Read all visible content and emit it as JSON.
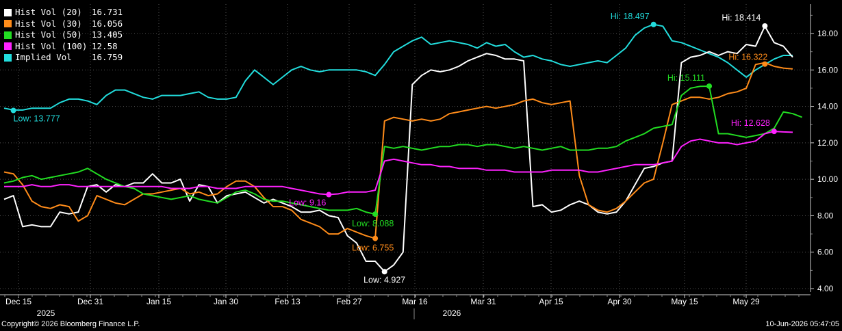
{
  "legend": [
    {
      "name": "Hist Vol (20)",
      "value": "16.731",
      "color": "#ffffff"
    },
    {
      "name": "Hist Vol (30)",
      "value": "16.056",
      "color": "#ff8c1a"
    },
    {
      "name": "Hist Vol (50)",
      "value": "13.405",
      "color": "#22dd22"
    },
    {
      "name": "Hist Vol (100)",
      "value": "12.58",
      "color": "#ff22ff"
    },
    {
      "name": "Implied Vol",
      "value": "16.759",
      "color": "#22dddd"
    }
  ],
  "footer": {
    "copyright": "Copyright© 2026 Bloomberg Finance L.P.",
    "timestamp": "10-Jun-2026 05:47:05"
  },
  "chart_data": {
    "type": "line",
    "ylim": [
      4,
      19
    ],
    "yticks": [
      "4.00",
      "6.00",
      "8.00",
      "10.00",
      "12.00",
      "14.00",
      "16.00",
      "18.00"
    ],
    "x_ticks": [
      "Dec 15",
      "Dec 31",
      "Jan 15",
      "Jan 30",
      "Feb 13",
      "Feb 27",
      "Mar 16",
      "Mar 31",
      "Apr 15",
      "Apr 30",
      "May 15",
      "May 29"
    ],
    "year_labels": [
      "2025",
      "2026"
    ],
    "series": [
      {
        "name": "Implied Vol",
        "color": "#22dddd",
        "values": [
          13.9,
          13.8,
          13.8,
          13.9,
          13.9,
          13.9,
          14.2,
          14.4,
          14.4,
          14.3,
          14.1,
          14.6,
          14.9,
          14.9,
          14.7,
          14.5,
          14.4,
          14.6,
          14.6,
          14.6,
          14.7,
          14.8,
          14.5,
          14.4,
          14.4,
          14.5,
          15.4,
          16.0,
          15.6,
          15.2,
          15.6,
          16.0,
          16.2,
          16.0,
          15.9,
          16.0,
          16.0,
          16.0,
          16.0,
          15.9,
          15.7,
          16.3,
          17.0,
          17.3,
          17.6,
          17.8,
          17.4,
          17.5,
          17.6,
          17.5,
          17.4,
          17.2,
          17.5,
          17.3,
          17.4,
          17.0,
          16.7,
          16.8,
          16.6,
          16.5,
          16.3,
          16.2,
          16.3,
          16.4,
          16.5,
          16.4,
          16.8,
          17.2,
          17.9,
          18.3,
          18.5,
          18.4,
          17.6,
          17.5,
          17.3,
          17.1,
          16.9,
          16.7,
          16.4,
          16.0,
          15.6,
          16.0,
          16.3,
          16.6,
          16.8,
          16.8
        ]
      },
      {
        "name": "Hist Vol (20)",
        "color": "#ffffff",
        "values": [
          8.9,
          9.1,
          7.4,
          7.5,
          7.4,
          7.4,
          8.2,
          8.1,
          8.2,
          9.6,
          9.7,
          9.3,
          9.7,
          9.6,
          9.8,
          9.8,
          10.3,
          9.8,
          9.8,
          10.0,
          8.8,
          9.7,
          9.6,
          8.7,
          9.1,
          9.2,
          9.3,
          9.0,
          8.7,
          8.9,
          8.7,
          8.5,
          8.2,
          8.2,
          8.3,
          8.0,
          7.9,
          6.9,
          6.5,
          5.5,
          5.5,
          4.93,
          5.3,
          6.0,
          15.2,
          15.7,
          16.0,
          15.9,
          16.0,
          16.2,
          16.5,
          16.7,
          16.9,
          16.8,
          16.6,
          16.6,
          16.5,
          8.5,
          8.6,
          8.2,
          8.3,
          8.6,
          8.8,
          8.6,
          8.2,
          8.1,
          8.2,
          8.8,
          9.7,
          10.6,
          10.7,
          10.9,
          11.0,
          16.4,
          16.7,
          16.8,
          17.0,
          16.8,
          17.0,
          16.9,
          17.4,
          17.3,
          18.4,
          17.5,
          17.3,
          16.7
        ]
      },
      {
        "name": "Hist Vol (30)",
        "color": "#ff8c1a",
        "values": [
          10.4,
          10.3,
          9.7,
          8.8,
          8.5,
          8.4,
          8.6,
          8.5,
          7.7,
          8.0,
          9.1,
          8.9,
          8.7,
          8.6,
          8.9,
          9.2,
          9.2,
          9.3,
          9.4,
          9.5,
          9.2,
          9.3,
          9.1,
          9.2,
          9.6,
          9.9,
          9.9,
          9.6,
          9.0,
          8.5,
          8.5,
          8.3,
          7.8,
          7.6,
          7.4,
          7.0,
          7.0,
          7.3,
          7.1,
          6.9,
          6.755,
          13.2,
          13.4,
          13.3,
          13.2,
          13.3,
          13.2,
          13.3,
          13.6,
          13.7,
          13.8,
          13.9,
          14.0,
          13.9,
          14.0,
          14.1,
          14.3,
          14.4,
          14.2,
          14.1,
          14.2,
          14.3,
          10.2,
          8.6,
          8.3,
          8.2,
          8.4,
          8.8,
          9.3,
          9.8,
          10.0,
          12.0,
          14.1,
          14.3,
          14.5,
          14.5,
          14.4,
          14.5,
          14.7,
          14.8,
          15.0,
          16.3,
          16.4,
          16.2,
          16.1,
          16.056
        ]
      },
      {
        "name": "Hist Vol (50)",
        "color": "#22dd22",
        "values": [
          9.8,
          9.9,
          10.1,
          10.2,
          10.0,
          10.1,
          10.2,
          10.3,
          10.4,
          10.6,
          10.3,
          10.0,
          9.8,
          9.6,
          9.5,
          9.2,
          9.1,
          9.0,
          8.9,
          9.0,
          9.1,
          8.9,
          8.8,
          8.7,
          9.0,
          9.3,
          9.4,
          9.2,
          8.9,
          8.8,
          8.8,
          8.7,
          8.6,
          8.5,
          8.4,
          8.3,
          8.3,
          8.3,
          8.4,
          8.2,
          8.088,
          11.8,
          11.7,
          11.8,
          11.7,
          11.6,
          11.7,
          11.8,
          11.8,
          11.9,
          11.9,
          11.8,
          11.9,
          11.9,
          11.8,
          11.7,
          11.8,
          11.7,
          11.6,
          11.7,
          11.8,
          11.6,
          11.6,
          11.6,
          11.7,
          11.7,
          11.8,
          12.1,
          12.3,
          12.5,
          12.8,
          12.9,
          13.0,
          14.6,
          15.0,
          15.1,
          15.111,
          12.5,
          12.5,
          12.4,
          12.3,
          12.4,
          12.5,
          12.8,
          13.7,
          13.6,
          13.405
        ]
      },
      {
        "name": "Hist Vol (100)",
        "color": "#ff22ff",
        "values": [
          9.6,
          9.6,
          9.6,
          9.7,
          9.6,
          9.6,
          9.7,
          9.7,
          9.6,
          9.6,
          9.6,
          9.6,
          9.6,
          9.6,
          9.6,
          9.6,
          9.6,
          9.6,
          9.5,
          9.5,
          9.5,
          9.6,
          9.6,
          9.5,
          9.5,
          9.5,
          9.6,
          9.6,
          9.6,
          9.6,
          9.6,
          9.5,
          9.4,
          9.3,
          9.2,
          9.16,
          9.2,
          9.3,
          9.3,
          9.3,
          9.4,
          11.0,
          11.1,
          11.0,
          10.9,
          10.8,
          10.8,
          10.7,
          10.7,
          10.6,
          10.6,
          10.6,
          10.5,
          10.5,
          10.5,
          10.4,
          10.4,
          10.4,
          10.4,
          10.5,
          10.5,
          10.5,
          10.5,
          10.4,
          10.4,
          10.5,
          10.6,
          10.7,
          10.8,
          10.8,
          10.8,
          10.9,
          11.0,
          11.8,
          12.1,
          12.2,
          12.1,
          12.0,
          12.0,
          11.9,
          12.0,
          12.1,
          12.5,
          12.628,
          12.6,
          12.58
        ]
      }
    ],
    "annotations": [
      {
        "series": "Implied Vol",
        "label": "Low: 13.777",
        "index": 1,
        "value": 13.777
      },
      {
        "series": "Implied Vol",
        "label": "Hi: 18.497",
        "index": 70,
        "value": 18.497
      },
      {
        "series": "Hist Vol (20)",
        "label": "Low: 4.927",
        "index": 41,
        "value": 4.927
      },
      {
        "series": "Hist Vol (20)",
        "label": "Hi: 18.414",
        "index": 82,
        "value": 18.414
      },
      {
        "series": "Hist Vol (30)",
        "label": "Low: 6.755",
        "index": 40,
        "value": 6.755
      },
      {
        "series": "Hist Vol (30)",
        "label": "Hi: 16.322",
        "index": 82,
        "value": 16.322
      },
      {
        "series": "Hist Vol (50)",
        "label": "Low: 8.088",
        "index": 40,
        "value": 8.088
      },
      {
        "series": "Hist Vol (50)",
        "label": "Hi: 15.111",
        "index": 76,
        "value": 15.111
      },
      {
        "series": "Hist Vol (100)",
        "label": "Low: 9.16",
        "index": 35,
        "value": 9.16
      },
      {
        "series": "Hist Vol (100)",
        "label": "Hi: 12.628",
        "index": 83,
        "value": 12.628
      }
    ]
  }
}
